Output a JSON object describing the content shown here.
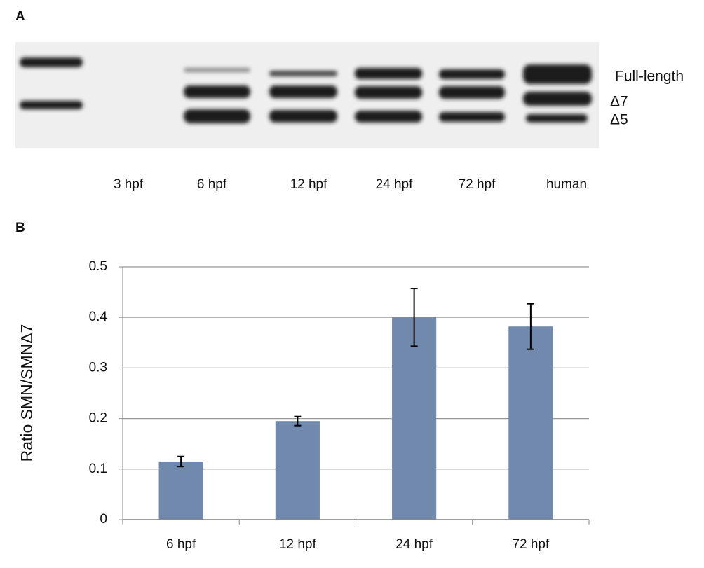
{
  "panel_a": {
    "label": "A",
    "lanes": [
      "3 hpf",
      "6 hpf",
      "12 hpf",
      "24 hpf",
      "72 hpf",
      "human"
    ],
    "bands": [
      "Full-length",
      "Δ7",
      "Δ5"
    ]
  },
  "chart_data": {
    "type": "bar",
    "label": "B",
    "ylabel": "Ratio SMN/SMNΔ7",
    "categories": [
      "6 hpf",
      "12 hpf",
      "24 hpf",
      "72 hpf"
    ],
    "values": [
      0.115,
      0.195,
      0.4,
      0.382
    ],
    "errors": [
      0.01,
      0.009,
      0.057,
      0.045
    ],
    "color": "#7189ad",
    "ylim": [
      0,
      0.5
    ],
    "yticks": [
      0,
      0.1,
      0.2,
      0.3,
      0.4,
      0.5
    ],
    "grid": true
  }
}
